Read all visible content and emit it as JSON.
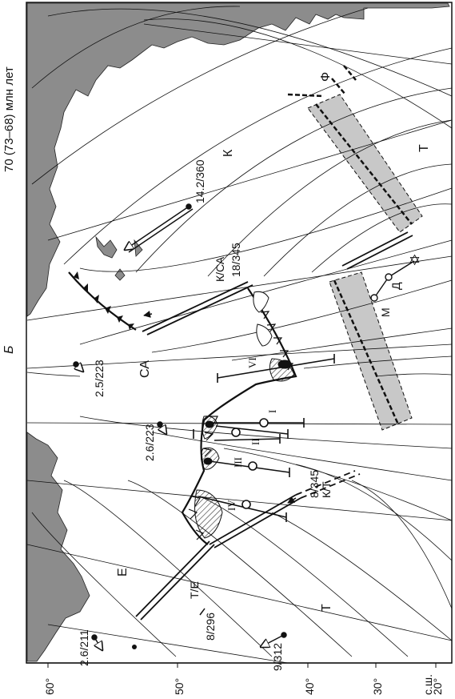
{
  "figure": {
    "panel_letter": "Б",
    "age_title": "70 (73–68) млн лет"
  },
  "latitude_axis": {
    "unit_label": "с.ш.",
    "ticks": [
      "60°",
      "50°",
      "40°",
      "30°",
      "20°"
    ]
  },
  "plates": {
    "eurasia": "Е",
    "north_america": "СА",
    "kula": "К",
    "pacific": "Т",
    "farallon": "Ф"
  },
  "boundary_labels": {
    "kula_na": "К/СА",
    "pac_eurasia": "Т/Е",
    "kula_pac": "К/Т"
  },
  "vectors": [
    {
      "id": "v1",
      "label": "14.2/360"
    },
    {
      "id": "v2",
      "label": "18/345"
    },
    {
      "id": "v3",
      "label": "2.5/223"
    },
    {
      "id": "v4",
      "label": "2.6/223"
    },
    {
      "id": "v5",
      "label": "8/345"
    },
    {
      "id": "v6",
      "label": "8/296"
    },
    {
      "id": "v7",
      "label": "9/312"
    },
    {
      "id": "v8",
      "label": "2.6/211"
    }
  ],
  "hotspots": {
    "m": "М",
    "d": "Д"
  },
  "terranes": [
    "I",
    "II",
    "III",
    "IV",
    "VI"
  ],
  "colors": {
    "land": "#8c8c8c",
    "ridge_band": "#c8c8c8",
    "line": "#111111"
  }
}
